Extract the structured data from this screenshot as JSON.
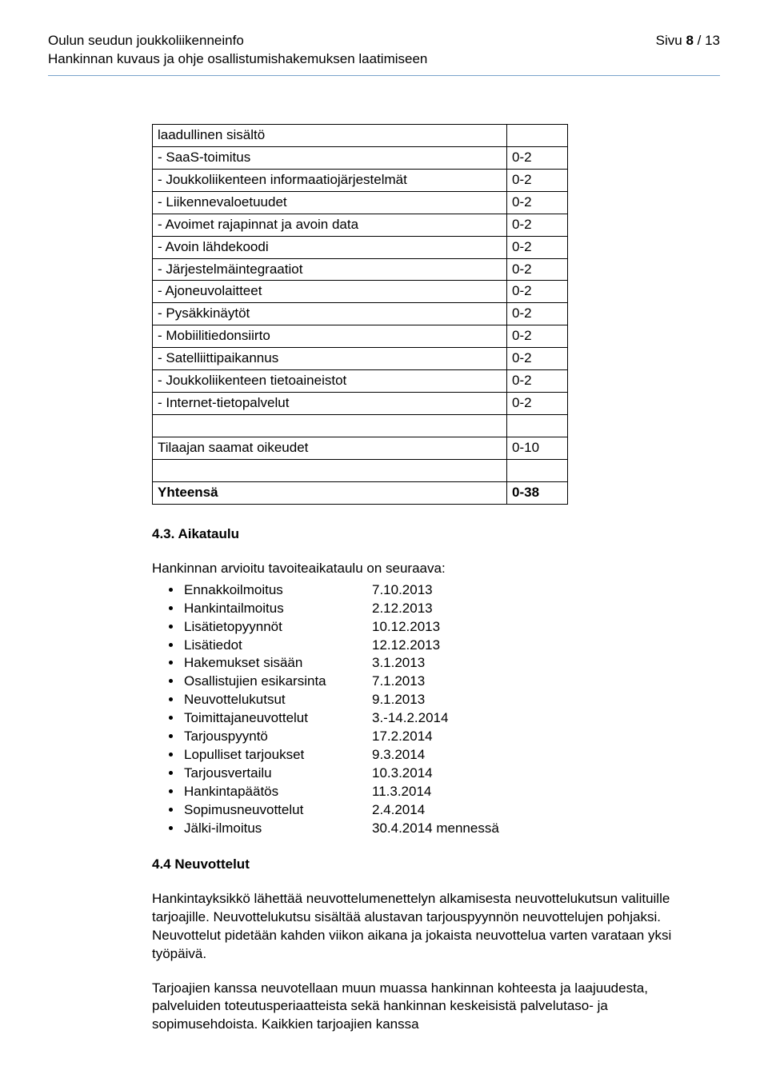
{
  "header": {
    "title": "Oulun seudun joukkoliikenneinfo",
    "subtitle": "Hankinnan kuvaus ja ohje osallistumishakemuksen laatimiseen",
    "page_label_prefix": "Sivu ",
    "page_current": "8",
    "page_sep": " / ",
    "page_total": "13"
  },
  "table": {
    "rows": [
      {
        "label": "laadullinen sisältö",
        "value": ""
      },
      {
        "label": "- SaaS-toimitus",
        "value": "0-2"
      },
      {
        "label": "- Joukkoliikenteen informaatiojärjestelmät",
        "value": "0-2"
      },
      {
        "label": "- Liikennevaloetuudet",
        "value": "0-2"
      },
      {
        "label": "- Avoimet rajapinnat ja avoin data",
        "value": "0-2"
      },
      {
        "label": "- Avoin lähdekoodi",
        "value": "0-2"
      },
      {
        "label": "- Järjestelmäintegraatiot",
        "value": "0-2"
      },
      {
        "label": "- Ajoneuvolaitteet",
        "value": "0-2"
      },
      {
        "label": "- Pysäkkinäytöt",
        "value": "0-2"
      },
      {
        "label": "- Mobiilitiedonsiirto",
        "value": "0-2"
      },
      {
        "label": "- Satelliittipaikannus",
        "value": "0-2"
      },
      {
        "label": "- Joukkoliikenteen tietoaineistot",
        "value": "0-2"
      },
      {
        "label": "- Internet-tietopalvelut",
        "value": "0-2"
      }
    ],
    "rights_row": {
      "label": "Tilaajan saamat oikeudet",
      "value": "0-10"
    },
    "total_row": {
      "label": "Yhteensä",
      "value": "0-38"
    }
  },
  "schedule": {
    "heading": "4.3. Aikataulu",
    "intro": "Hankinnan arvioitu tavoiteaikataulu on seuraava:",
    "items": [
      {
        "label": "Ennakkoilmoitus",
        "date": "7.10.2013"
      },
      {
        "label": "Hankintailmoitus",
        "date": "2.12.2013"
      },
      {
        "label": "Lisätietopyynnöt",
        "date": "10.12.2013"
      },
      {
        "label": "Lisätiedot",
        "date": "12.12.2013"
      },
      {
        "label": "Hakemukset sisään",
        "date": "3.1.2013"
      },
      {
        "label": "Osallistujien esikarsinta",
        "date": "7.1.2013"
      },
      {
        "label": "Neuvottelukutsut",
        "date": "9.1.2013"
      },
      {
        "label": "Toimittajaneuvottelut",
        "date": "3.-14.2.2014"
      },
      {
        "label": "Tarjouspyyntö",
        "date": "17.2.2014"
      },
      {
        "label": "Lopulliset tarjoukset",
        "date": "9.3.2014"
      },
      {
        "label": "Tarjousvertailu",
        "date": "10.3.2014"
      },
      {
        "label": "Hankintapäätös",
        "date": "11.3.2014"
      },
      {
        "label": "Sopimusneuvottelut",
        "date": "2.4.2014"
      },
      {
        "label": "Jälki-ilmoitus",
        "date": "30.4.2014 mennessä"
      }
    ]
  },
  "negotiations": {
    "heading": "4.4 Neuvottelut",
    "para1": "Hankintayksikkö lähettää neuvottelumenettelyn alkamisesta neuvottelukutsun valituille tarjoajille. Neuvottelukutsu sisältää alustavan tarjouspyynnön neuvottelujen pohjaksi. Neuvottelut pidetään kahden viikon aikana ja jokaista neuvottelua varten varataan yksi työpäivä.",
    "para2": "Tarjoajien kanssa neuvotellaan muun muassa hankinnan kohteesta ja laajuudesta, palveluiden toteutusperiaatteista sekä hankinnan keskeisistä palvelutaso- ja sopimusehdoista. Kaikkien tarjoajien kanssa"
  }
}
